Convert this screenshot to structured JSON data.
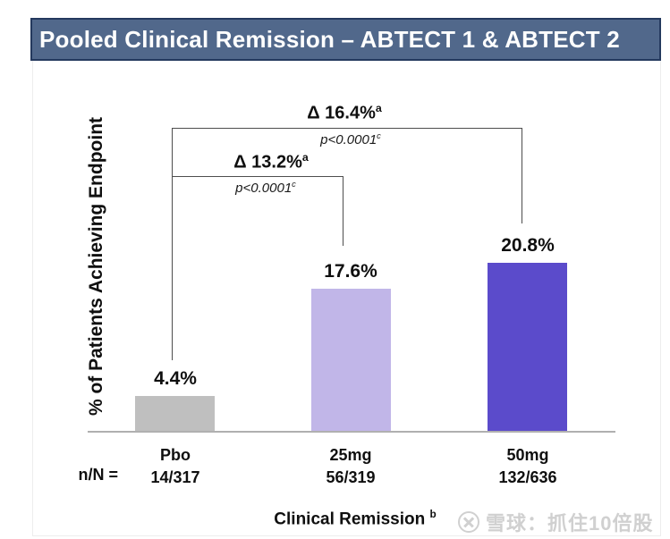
{
  "slide": {
    "title": "Pooled Clinical Remission – ABTECT 1 & ABTECT 2"
  },
  "chart_data": {
    "type": "bar",
    "title": "Pooled Clinical Remission – ABTECT 1 & ABTECT 2",
    "ylabel": "% of Patients Achieving Endpoint",
    "xlabel": "Clinical Remission",
    "xlabel_sup": "b",
    "ylim": [
      0,
      22
    ],
    "grid": false,
    "legend": "none",
    "categories": [
      "Pbo",
      "25mg",
      "50mg"
    ],
    "values": [
      4.4,
      17.6,
      20.8
    ],
    "value_labels": [
      "4.4%",
      "17.6%",
      "20.8%"
    ],
    "n_label": "n/N =",
    "n_over_N": [
      "14/317",
      "56/319",
      "132/636"
    ],
    "bar_colors": [
      "#bfbfbf",
      "#c1b6e8",
      "#5b4bcb"
    ],
    "comparisons": [
      {
        "delta": "Δ 13.2%",
        "delta_sup": "a",
        "p": "p<0.0001",
        "p_sup": "c",
        "between": [
          "Pbo",
          "25mg"
        ]
      },
      {
        "delta": "Δ 16.4%",
        "delta_sup": "a",
        "p": "p<0.0001",
        "p_sup": "c",
        "between": [
          "Pbo",
          "50mg"
        ]
      }
    ]
  },
  "watermark": {
    "text": "雪球：抓住10倍股",
    "logo": "xueqiu-circle-x-logo"
  }
}
